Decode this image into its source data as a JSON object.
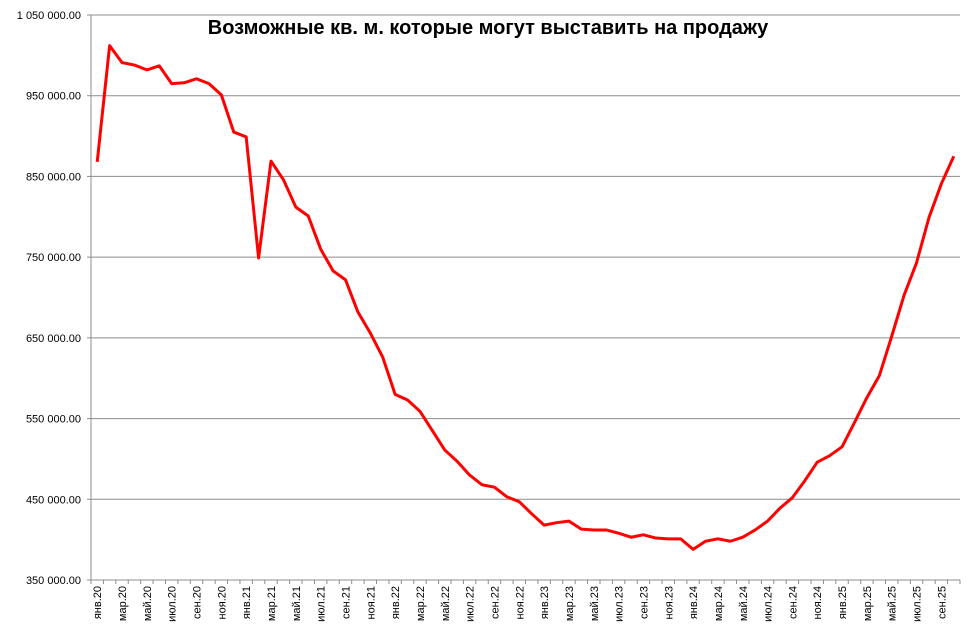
{
  "chart_data": {
    "type": "line",
    "title": "Возможные кв. м. которые могут выставить на продажу",
    "categories": [
      "янв.20",
      null,
      "мар.20",
      null,
      "май.20",
      null,
      "июл.20",
      null,
      "сен.20",
      null,
      "ноя.20",
      null,
      "янв.21",
      null,
      "мар.21",
      null,
      "май.21",
      null,
      "июл.21",
      null,
      "сен.21",
      null,
      "ноя.21",
      null,
      "янв.22",
      null,
      "мар.22",
      null,
      "май.22",
      null,
      "июл.22",
      null,
      "сен.22",
      null,
      "ноя.22",
      null,
      "янв.23",
      null,
      "мар.23",
      null,
      "май.23",
      null,
      "июл.23",
      null,
      "сен.23",
      null,
      "ноя.23",
      null,
      "янв.24",
      null,
      "мар.24",
      null,
      "май.24",
      null,
      "июл.24",
      null,
      "сен.24",
      null,
      "ноя.24",
      null,
      "янв.25",
      null,
      "мар.25",
      null,
      "май.25",
      null,
      "июл.25",
      null,
      "сен.25",
      null
    ],
    "values": [
      868000,
      1012000,
      991000,
      988000,
      982000,
      987000,
      965000,
      966000,
      971000,
      965000,
      951000,
      905000,
      899000,
      749000,
      869000,
      846000,
      812000,
      801000,
      760000,
      733000,
      722000,
      682000,
      656000,
      626000,
      580000,
      573000,
      559000,
      535000,
      511000,
      497000,
      480000,
      468000,
      465000,
      453000,
      447000,
      432000,
      418000,
      421000,
      423000,
      413000,
      412000,
      412000,
      408000,
      403000,
      406000,
      402000,
      401000,
      401000,
      388000,
      398000,
      401000,
      398000,
      403000,
      412000,
      423000,
      439000,
      452000,
      473000,
      496000,
      504000,
      515000,
      545000,
      576000,
      603000,
      652000,
      703000,
      743000,
      799000,
      841000,
      875000
    ],
    "color": "#ff0000",
    "ylim": [
      350000,
      1050000
    ],
    "yticks": [
      {
        "value": 350000,
        "label": "350 000.00"
      },
      {
        "value": 450000,
        "label": "450 000.00"
      },
      {
        "value": 550000,
        "label": "550 000.00"
      },
      {
        "value": 650000,
        "label": "650 000.00"
      },
      {
        "value": 750000,
        "label": "750 000.00"
      },
      {
        "value": 850000,
        "label": "850 000.00"
      },
      {
        "value": 950000,
        "label": "950 000.00"
      },
      {
        "value": 1050000,
        "label": "1 050 000.00"
      }
    ],
    "grid": true
  }
}
